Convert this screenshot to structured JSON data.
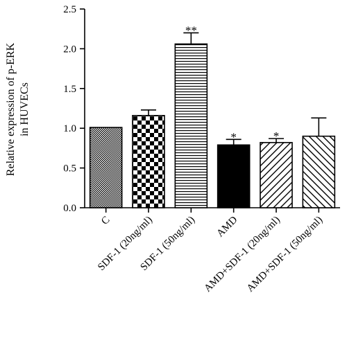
{
  "chart_data": {
    "type": "bar",
    "title": "",
    "xlabel": "",
    "ylabel": "Relative expression of p-ERK",
    "ylabel_line2": "in HUVECs",
    "ylim": [
      0,
      2.5
    ],
    "yticks": [
      "0.0",
      "0.5",
      "1.0",
      "1.5",
      "2.0",
      "2.5"
    ],
    "categories": [
      "C",
      "SDF-1 (20ng/ml)",
      "SDF-1 (50ng/ml)",
      "AMD",
      "AMD+SDF-1 (20ng/ml)",
      "AMD+SDF-1 (50ng/ml)"
    ],
    "values": [
      1.01,
      1.16,
      2.06,
      0.79,
      0.82,
      0.9
    ],
    "errors": [
      0.0,
      0.07,
      0.14,
      0.07,
      0.05,
      0.23
    ],
    "significance": [
      "",
      "",
      "**",
      "*",
      "*",
      ""
    ],
    "patterns": [
      "crosshatch",
      "checker",
      "hlines",
      "solid",
      "diag-right",
      "diag-left"
    ],
    "colors": {
      "bar_stroke": "#000000",
      "fill": "#000000",
      "background": "#ffffff"
    }
  }
}
